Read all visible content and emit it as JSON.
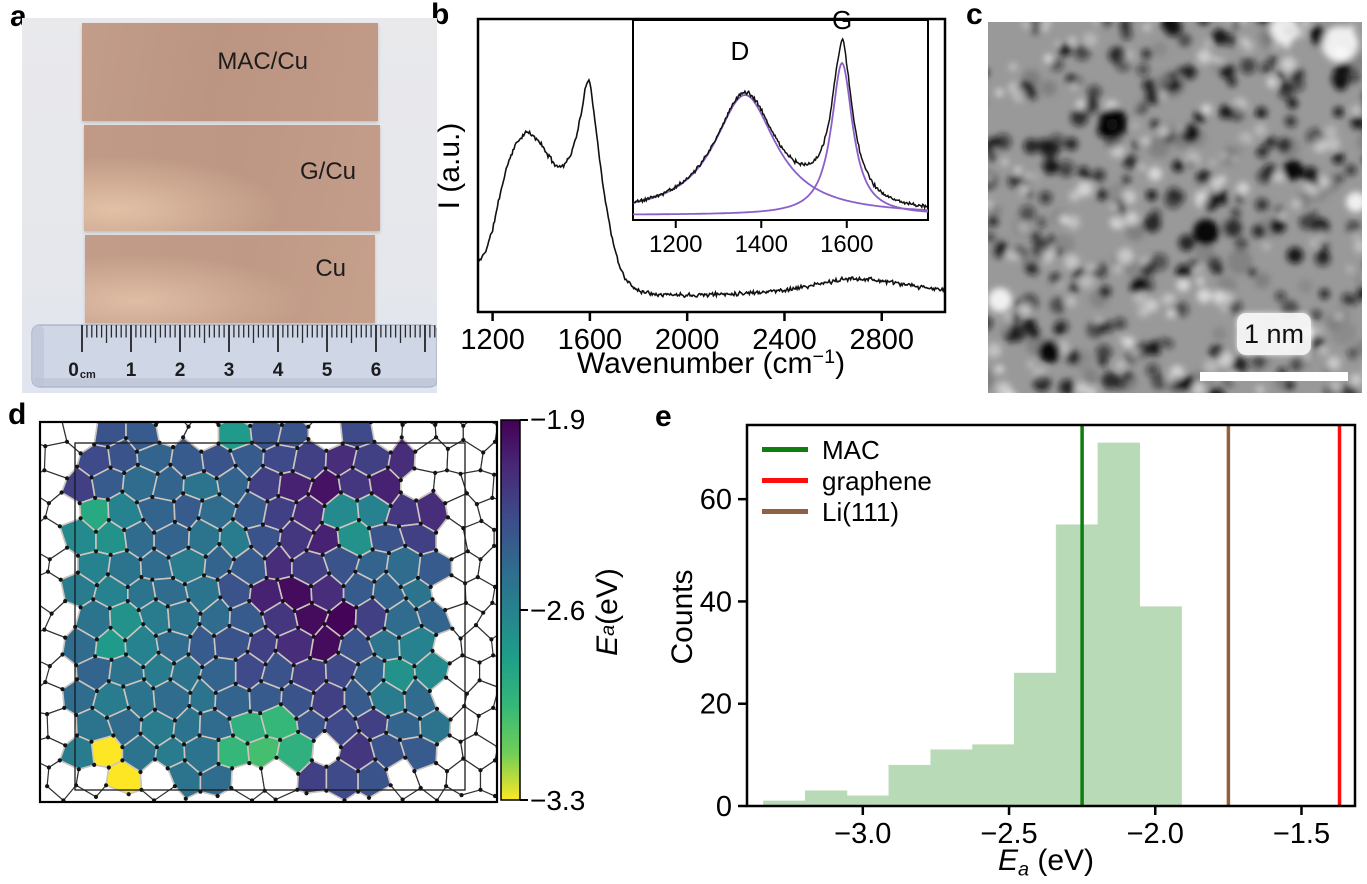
{
  "panels": {
    "a": {
      "letter": "a",
      "samples": [
        {
          "label": "MAC/Cu"
        },
        {
          "label": "G/Cu"
        },
        {
          "label": "Cu"
        }
      ],
      "ruler": {
        "numbers": [
          "0",
          "1",
          "2",
          "3",
          "4",
          "5",
          "6"
        ],
        "unit": "cm"
      }
    },
    "b": {
      "letter": "b",
      "ylabel": "I (a.u.)",
      "xlabel_pre": "Wavenumber (cm",
      "xlabel_sup": "−1",
      "xlabel_post": ")"
    },
    "c": {
      "letter": "c",
      "scalebar_label": "1 nm",
      "texture": {
        "seed": 9,
        "dark_count": 250,
        "light_count": 160,
        "mid_count": 60,
        "base_color": "#999999",
        "dark_spots": [
          [
            125,
            100,
            14
          ],
          [
            218,
            210,
            13
          ],
          [
            62,
            330,
            11
          ],
          [
            305,
            148,
            10
          ]
        ],
        "bright_spots": [
          [
            352,
            22,
            18
          ],
          [
            296,
            8,
            14
          ],
          [
            12,
            278,
            12
          ],
          [
            368,
            180,
            10
          ]
        ]
      }
    },
    "d": {
      "letter": "d",
      "colorbar_ticks": [
        "−1.9",
        "−2.6",
        "−3.3"
      ],
      "axis_label_base": "E",
      "axis_label_sub": "a",
      "axis_label_rest": " (eV)"
    },
    "e": {
      "letter": "e",
      "ylabel": "Counts",
      "xlabel_base": "E",
      "xlabel_sub": "a",
      "xlabel_rest": " (eV)"
    }
  },
  "chart_data": [
    {
      "panel": "b",
      "type": "line",
      "title": "Raman spectrum",
      "xlabel": "Wavenumber (cm-1)",
      "ylabel": "I (a.u.)",
      "xlim": [
        1140,
        3060
      ],
      "xticks": [
        1200,
        1600,
        2000,
        2400,
        2800
      ],
      "line_color": "#111111",
      "noise_amp": 0.009,
      "seed": 11,
      "curve_anchors": [
        [
          1143,
          0.17
        ],
        [
          1170,
          0.205
        ],
        [
          1200,
          0.28
        ],
        [
          1230,
          0.4
        ],
        [
          1260,
          0.5
        ],
        [
          1290,
          0.565
        ],
        [
          1320,
          0.6
        ],
        [
          1345,
          0.615
        ],
        [
          1365,
          0.6
        ],
        [
          1390,
          0.585
        ],
        [
          1420,
          0.545
        ],
        [
          1450,
          0.51
        ],
        [
          1470,
          0.495
        ],
        [
          1490,
          0.5
        ],
        [
          1510,
          0.52
        ],
        [
          1530,
          0.555
        ],
        [
          1550,
          0.62
        ],
        [
          1570,
          0.7
        ],
        [
          1585,
          0.78
        ],
        [
          1595,
          0.8
        ],
        [
          1605,
          0.76
        ],
        [
          1620,
          0.66
        ],
        [
          1640,
          0.52
        ],
        [
          1660,
          0.4
        ],
        [
          1680,
          0.3
        ],
        [
          1700,
          0.22
        ],
        [
          1720,
          0.16
        ],
        [
          1745,
          0.115
        ],
        [
          1775,
          0.085
        ],
        [
          1820,
          0.068
        ],
        [
          1900,
          0.06
        ],
        [
          2000,
          0.058
        ],
        [
          2100,
          0.06
        ],
        [
          2200,
          0.063
        ],
        [
          2300,
          0.068
        ],
        [
          2400,
          0.075
        ],
        [
          2500,
          0.088
        ],
        [
          2600,
          0.105
        ],
        [
          2680,
          0.115
        ],
        [
          2750,
          0.112
        ],
        [
          2850,
          0.1
        ],
        [
          2950,
          0.085
        ],
        [
          3060,
          0.075
        ]
      ],
      "inset": {
        "xlim": [
          1100,
          1790
        ],
        "xticks": [
          1200,
          1400,
          1600
        ],
        "fit_color": "#8b5fc8",
        "line_color": "#111111",
        "baseline": 0.025,
        "noise_amp": 0.012,
        "seed": 5,
        "spike": {
          "center": 1591,
          "hwhm": 5,
          "amp": 0.045
        },
        "peaks": [
          {
            "label": "D",
            "center": 1362,
            "hwhm": 88,
            "amp": 0.6,
            "label_x": 1350,
            "label_frac": 0.8
          },
          {
            "label": "G",
            "center": 1589,
            "hwhm": 30,
            "amp": 0.76,
            "label_x": 1589,
            "label_frac": 0.955
          }
        ]
      }
    },
    {
      "panel": "d",
      "type": "heatmap",
      "title": "Li adsorption energy map on MAC",
      "value_top": -1.9,
      "value_bottom": -3.3,
      "colorbar_tick_values": [
        -1.9,
        -2.6,
        -3.3
      ],
      "seed": 3,
      "cell_stroke": "#cdc5bd",
      "white_stroke": "#2f2f2f",
      "dot_color": "#141414",
      "viridis_stops": [
        [
          0,
          "#440154"
        ],
        [
          0.125,
          "#482878"
        ],
        [
          0.25,
          "#3e4a89"
        ],
        [
          0.375,
          "#31688e"
        ],
        [
          0.5,
          "#26828e"
        ],
        [
          0.625,
          "#1f9e89"
        ],
        [
          0.75,
          "#35b779"
        ],
        [
          0.875,
          "#6ece58"
        ],
        [
          1,
          "#fde725"
        ]
      ],
      "grid": {
        "cols": 15,
        "rows": 14,
        "values": [
          [
            null,
            null,
            -2.3,
            -2.35,
            null,
            null,
            -2.75,
            -2.3,
            -2.3,
            null,
            -2.25,
            null,
            null,
            null,
            null
          ],
          [
            null,
            -2.25,
            -2.3,
            -2.4,
            -2.35,
            -2.3,
            -2.35,
            -2.25,
            -2.2,
            -2.1,
            -2.2,
            -2.1,
            null,
            null,
            null
          ],
          [
            null,
            -2.2,
            -2.35,
            -2.45,
            -2.4,
            -2.5,
            -2.4,
            -2.2,
            -2.05,
            -1.98,
            -2.15,
            -2.05,
            null,
            null,
            null
          ],
          [
            null,
            -2.85,
            -2.6,
            -2.4,
            -2.35,
            -2.45,
            -2.35,
            -2.2,
            -2.1,
            -2.65,
            -2.6,
            -2.15,
            -2.1,
            null,
            null
          ],
          [
            null,
            -2.65,
            -2.7,
            -2.45,
            -2.4,
            -2.5,
            -2.55,
            -2.3,
            -2.15,
            -2.05,
            -2.7,
            -2.3,
            -2.2,
            null,
            null
          ],
          [
            null,
            -2.6,
            -2.5,
            -2.45,
            -2.55,
            -2.4,
            -2.35,
            -2.1,
            -2.2,
            -2.3,
            -2.4,
            -2.45,
            -2.35,
            null,
            null
          ],
          [
            null,
            -2.55,
            -2.6,
            -2.5,
            -2.45,
            -2.5,
            -2.3,
            -2.05,
            -1.95,
            -2.1,
            -2.35,
            -2.4,
            -2.5,
            null,
            null
          ],
          [
            null,
            -2.5,
            -2.7,
            -2.55,
            -2.5,
            -2.45,
            -2.35,
            -2.15,
            -1.95,
            -1.92,
            -2.2,
            -2.45,
            -2.4,
            null,
            null
          ],
          [
            null,
            -2.45,
            -2.75,
            -2.6,
            -2.45,
            -2.35,
            -2.3,
            -2.2,
            -2.1,
            -1.95,
            -2.3,
            -2.5,
            -2.6,
            null,
            null
          ],
          [
            null,
            -2.4,
            -2.5,
            -2.55,
            -2.5,
            -2.4,
            -2.25,
            -2.3,
            -2.2,
            -2.25,
            -2.4,
            -2.7,
            -2.65,
            null,
            null
          ],
          [
            null,
            -2.45,
            -2.55,
            -2.5,
            -2.45,
            -2.5,
            -2.4,
            -2.35,
            -2.3,
            -2.2,
            -2.35,
            -2.55,
            -2.45,
            null,
            null
          ],
          [
            null,
            -2.5,
            -2.45,
            -2.55,
            -2.5,
            -2.45,
            -2.9,
            -2.95,
            -2.3,
            -2.25,
            -2.2,
            -2.4,
            -2.5,
            null,
            null
          ],
          [
            null,
            -2.55,
            -3.3,
            -2.5,
            -2.55,
            -2.5,
            -2.95,
            -3.0,
            -2.9,
            null,
            -2.15,
            -2.3,
            -2.35,
            null,
            null
          ],
          [
            null,
            null,
            -3.3,
            null,
            -2.5,
            -2.45,
            null,
            null,
            -2.2,
            -2.25,
            -2.3,
            null,
            null,
            null,
            null
          ]
        ]
      }
    },
    {
      "panel": "e",
      "type": "histogram",
      "title": "Distribution of Li adsorption energies",
      "xlabel": "Ea (eV)",
      "ylabel": "Counts",
      "xlim": [
        -3.396,
        -1.317
      ],
      "ylim": [
        0,
        74.5
      ],
      "xticks": [
        -3.0,
        -2.5,
        -2.0,
        -1.5
      ],
      "yticks": [
        0,
        20,
        40,
        60
      ],
      "bin_start": -3.34,
      "bin_width": 0.143,
      "counts": [
        1,
        3,
        2,
        8,
        11,
        12,
        26,
        55,
        71,
        39
      ],
      "bar_color": "#b9dab7",
      "vlines": [
        {
          "label": "MAC",
          "x": -2.25,
          "color": "#0f7d0f"
        },
        {
          "label": "graphene",
          "x": -1.37,
          "color": "#fb0e0c"
        },
        {
          "label": "Li(111)",
          "x": -1.75,
          "color": "#8f6142"
        }
      ]
    }
  ]
}
